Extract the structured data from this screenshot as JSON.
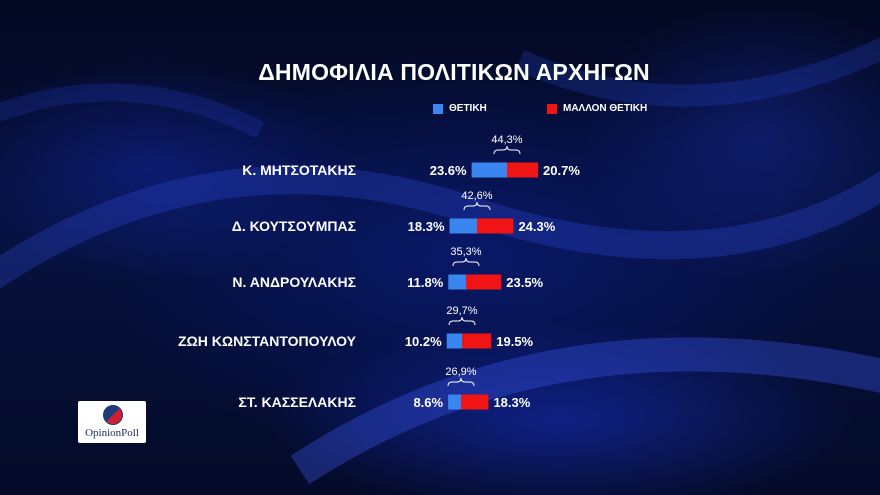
{
  "colors": {
    "positive": "#3a86f0",
    "rather_positive": "#f01414",
    "text": "#ffffff"
  },
  "logo": {
    "text": "OpinionPoll"
  },
  "chart_data": {
    "type": "bar",
    "stacked": true,
    "orientation": "horizontal",
    "title": "ΔΗΜΟΦΙΛΙΑ ΠΟΛΙΤΙΚΩΝ ΑΡΧΗΓΩΝ",
    "legend_position": "top",
    "categories": [
      "Κ. ΜΗΤΣΟΤΑΚΗΣ",
      "Δ. ΚΟΥΤΣΟΥΜΠΑΣ",
      "Ν. ΑΝΔΡΟΥΛΑΚΗΣ",
      "ΖΩΗ ΚΩΝΣΤΑΝΤΟΠΟΥΛΟΥ",
      "ΣΤ. ΚΑΣΣΕΛΑΚΗΣ"
    ],
    "series": [
      {
        "name": "ΘΕΤΙΚΗ",
        "values": [
          23.6,
          18.3,
          11.8,
          10.2,
          8.6
        ],
        "labels": [
          "23.6%",
          "18.3%",
          "11.8%",
          "10.2%",
          "8.6%"
        ]
      },
      {
        "name": "ΜΑΛΛΟΝ ΘΕΤΙΚΗ",
        "values": [
          20.7,
          24.3,
          23.5,
          19.5,
          18.3
        ],
        "labels": [
          "20.7%",
          "24.3%",
          "23.5%",
          "19.5%",
          "18.3%"
        ]
      }
    ],
    "totals": [
      "44,3%",
      "42,6%",
      "35,3%",
      "29,7%",
      "26,9%"
    ]
  }
}
